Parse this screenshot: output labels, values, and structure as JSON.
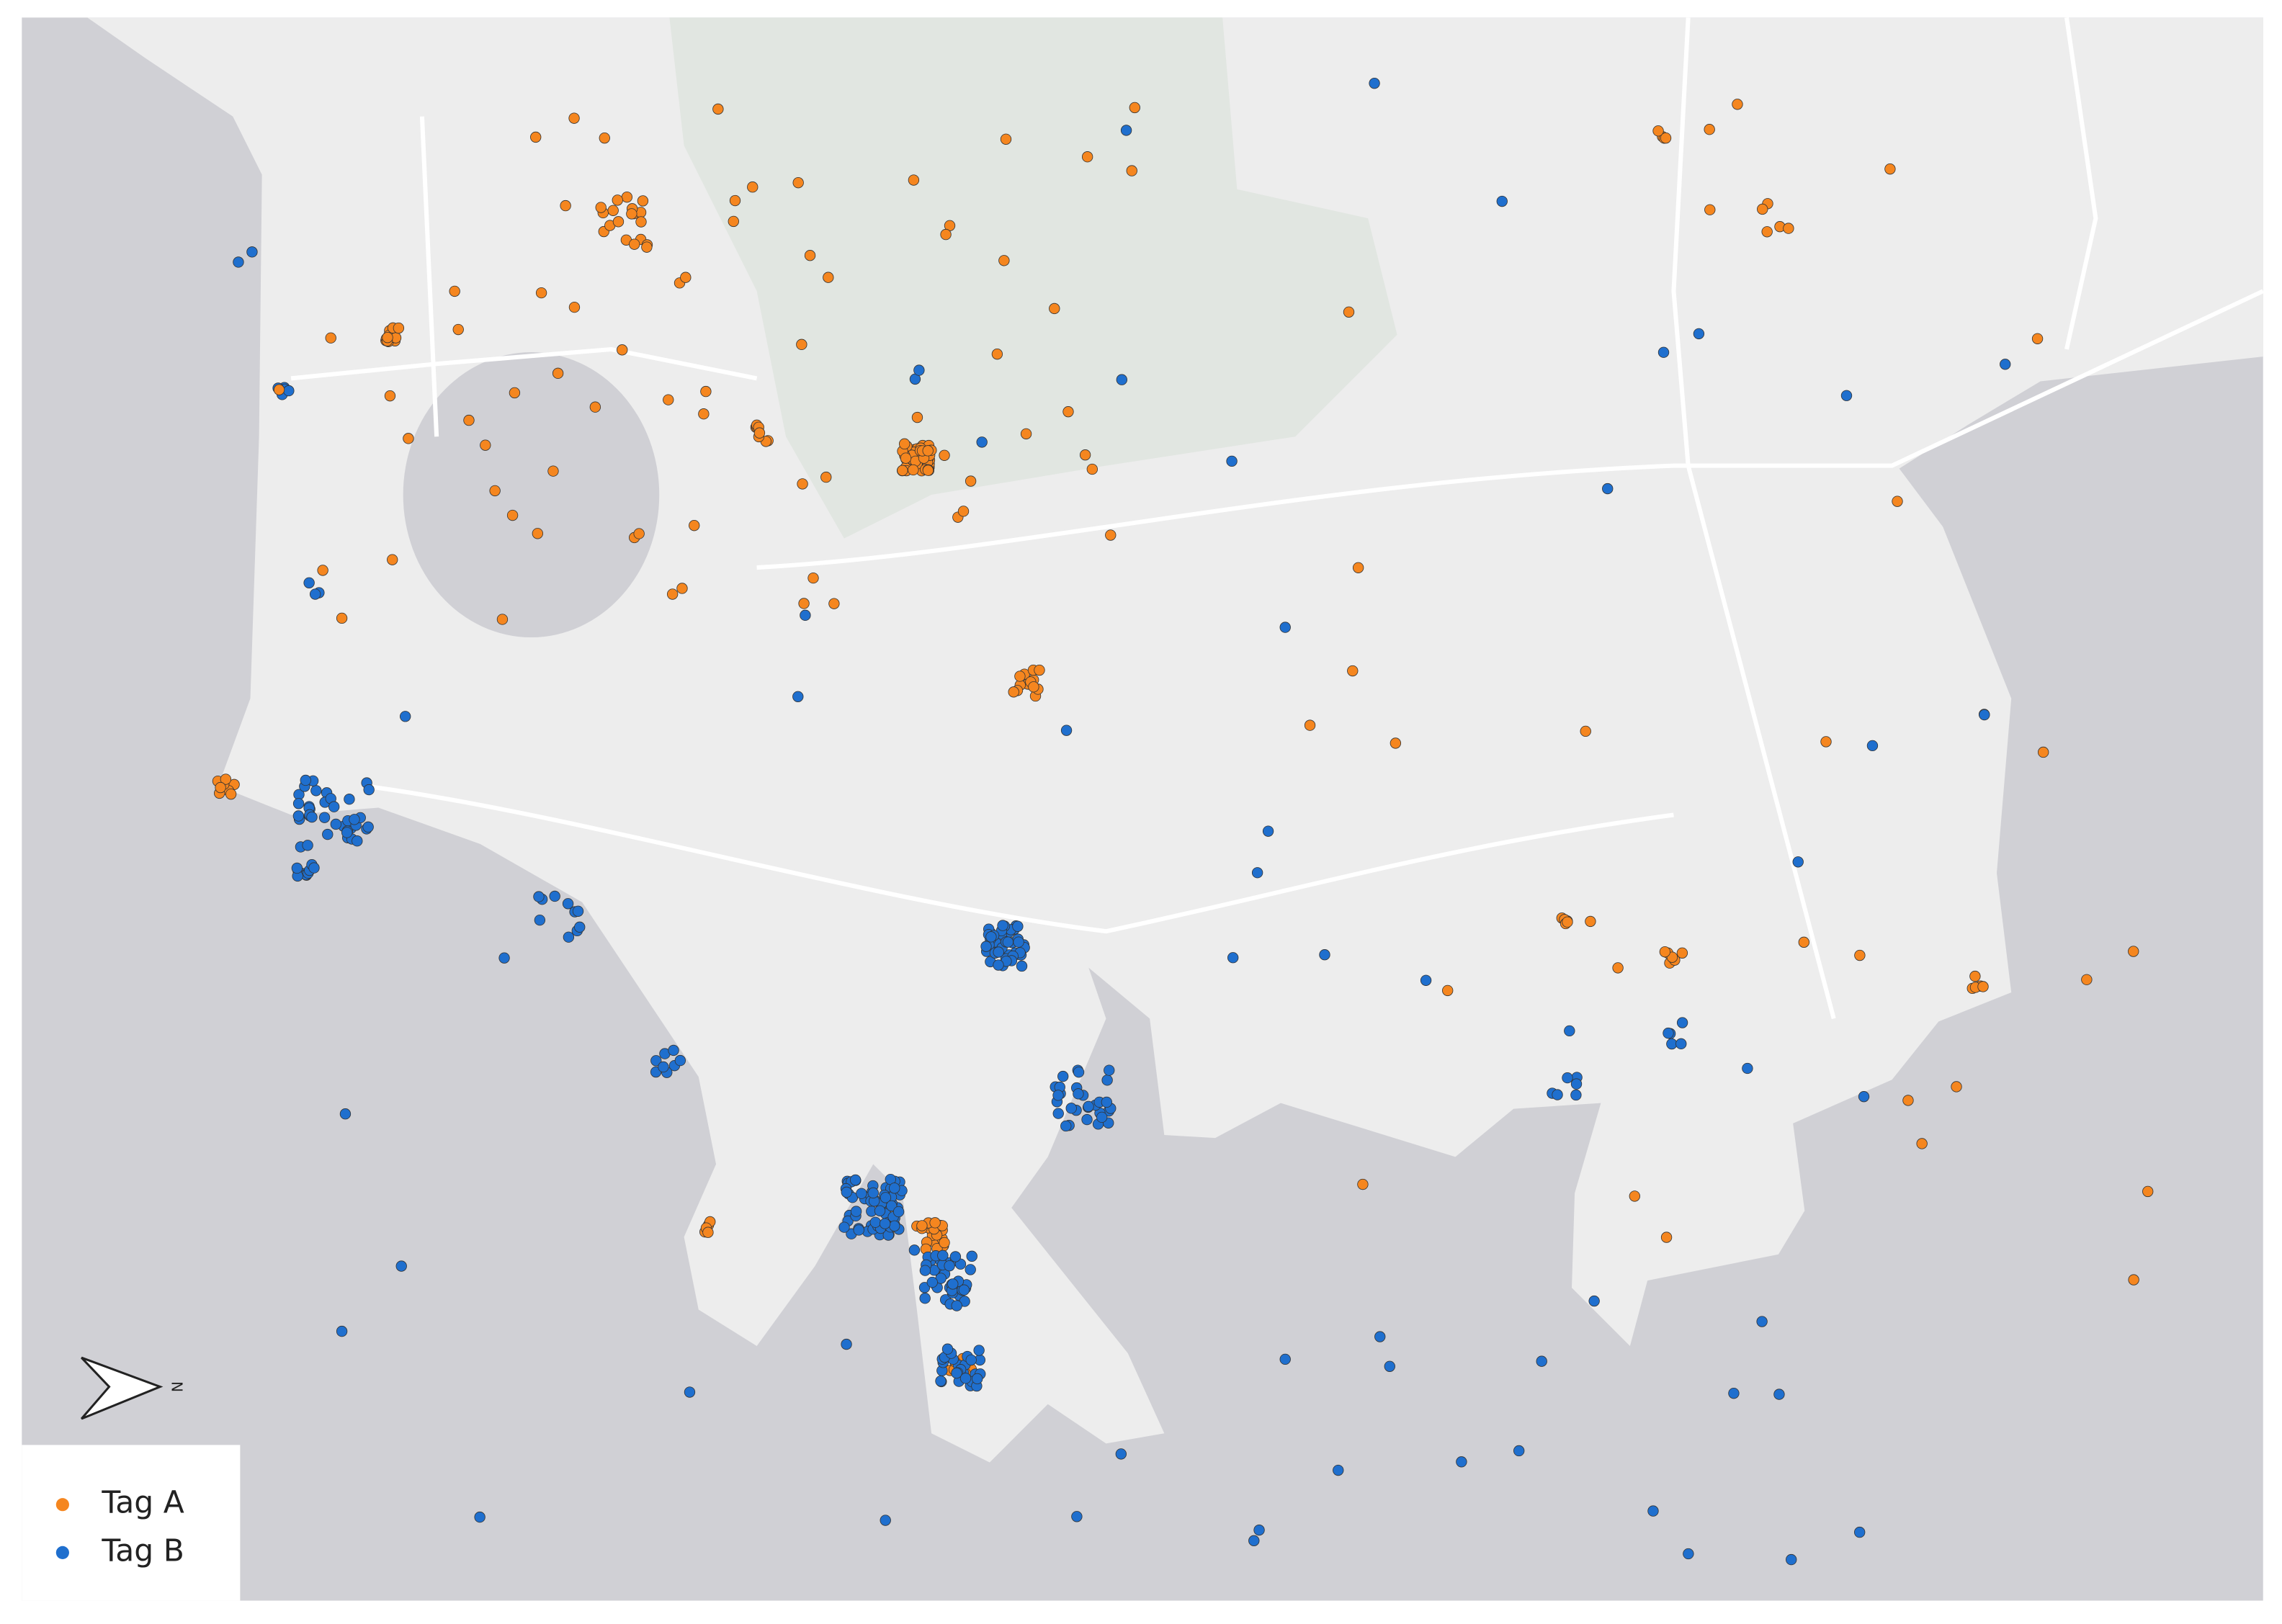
{
  "legend": {
    "items": [
      {
        "label": "Tag A",
        "color": "#f5861f"
      },
      {
        "label": "Tag B",
        "color": "#1f6fce"
      }
    ]
  },
  "north_arrow": {
    "label": "N"
  }
}
